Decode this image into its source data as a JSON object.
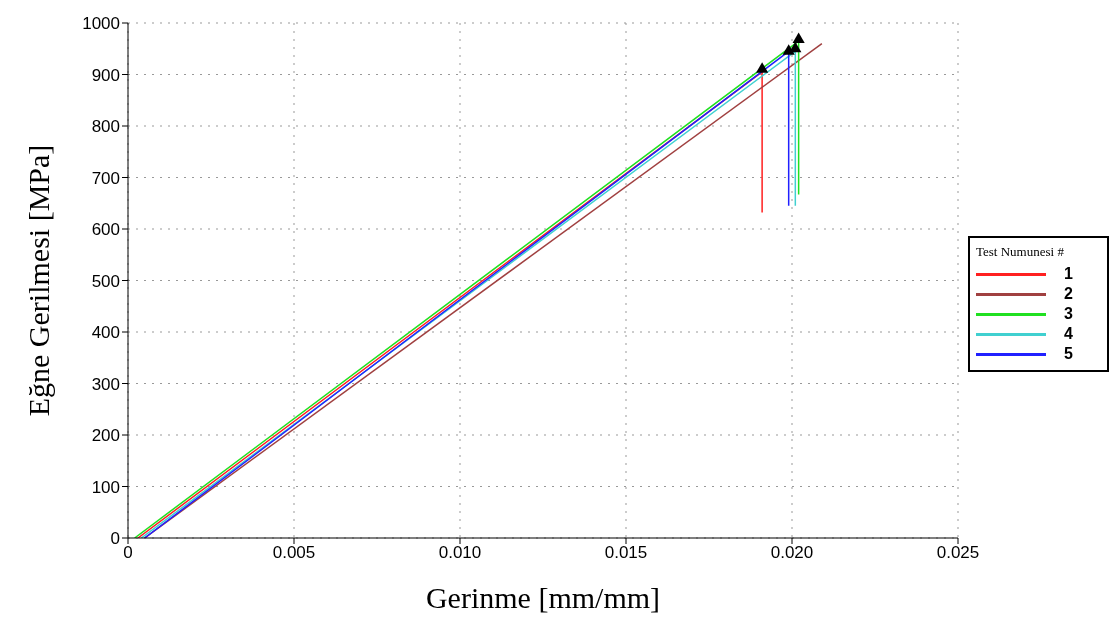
{
  "chart_data": {
    "type": "line",
    "xlabel": "Gerinme [mm/mm]",
    "ylabel": "Eğne Gerilmesi [MPa]",
    "legend_title": "Test Numunesi #",
    "legend": "right",
    "grid": true,
    "line_style": "solid",
    "marker": "none",
    "xlim": [
      0,
      0.025
    ],
    "xticks": [
      {
        "value": 0,
        "label": "0"
      },
      {
        "value": 0.005,
        "label": "0.005"
      },
      {
        "value": 0.01,
        "label": "0.010"
      },
      {
        "value": 0.015,
        "label": "0.015"
      },
      {
        "value": 0.02,
        "label": "0.020"
      },
      {
        "value": 0.025,
        "label": "0.025"
      }
    ],
    "ylim": [
      0,
      1000
    ],
    "yticks": [
      0,
      100,
      200,
      300,
      400,
      500,
      600,
      700,
      800,
      900,
      1000
    ],
    "series": [
      {
        "name": "1",
        "color": "#ff2020",
        "x": [
          0.0003,
          0.0191,
          0.0191
        ],
        "values": [
          0,
          905,
          632
        ]
      },
      {
        "name": "2",
        "color": "#a04040",
        "x": [
          0.0005,
          0.0209,
          0.0209
        ],
        "values": [
          0,
          960,
          960
        ]
      },
      {
        "name": "3",
        "color": "#20e020",
        "x": [
          0.0002,
          0.0202,
          0.0202
        ],
        "values": [
          0,
          965,
          667
        ]
      },
      {
        "name": "4",
        "color": "#40d0d0",
        "x": [
          0.0004,
          0.0201,
          0.0201
        ],
        "values": [
          0,
          945,
          645
        ]
      },
      {
        "name": "5",
        "color": "#2020ff",
        "x": [
          0.0005,
          0.0199,
          0.0199
        ],
        "values": [
          0,
          945,
          645
        ]
      },
      {
        "type": "scatter",
        "color": "#000000",
        "marker": "triangle",
        "x": [
          0.0191,
          0.0199,
          0.0201,
          0.0202
        ],
        "values": [
          910,
          945,
          950,
          968
        ]
      }
    ]
  }
}
